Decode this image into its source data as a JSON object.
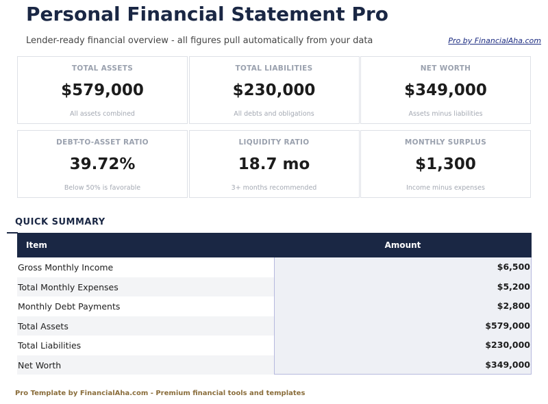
{
  "header": {
    "title": "Personal Financial Statement Pro",
    "subtitle": "Lender-ready financial overview - all figures pull automatically from your data",
    "link": "Pro by FinancialAha.com"
  },
  "cards": [
    {
      "label": "TOTAL ASSETS",
      "value": "$579,000",
      "note": "All assets combined"
    },
    {
      "label": "TOTAL LIABILITIES",
      "value": "$230,000",
      "note": "All debts and obligations"
    },
    {
      "label": "NET WORTH",
      "value": "$349,000",
      "note": "Assets minus liabilities"
    },
    {
      "label": "DEBT-TO-ASSET RATIO",
      "value": "39.72%",
      "note": "Below 50% is favorable"
    },
    {
      "label": "LIQUIDITY RATIO",
      "value": "18.7 mo",
      "note": "3+ months recommended"
    },
    {
      "label": "MONTHLY SURPLUS",
      "value": "$1,300",
      "note": "Income minus expenses"
    }
  ],
  "summary": {
    "title": "QUICK SUMMARY",
    "columns": [
      "Item",
      "Amount"
    ],
    "rows": [
      [
        "Gross Monthly Income",
        "$6,500"
      ],
      [
        "Total Monthly Expenses",
        "$5,200"
      ],
      [
        "Monthly Debt Payments",
        "$2,800"
      ],
      [
        "Total Assets",
        "$579,000"
      ],
      [
        "Total Liabilities",
        "$230,000"
      ],
      [
        "Net Worth",
        "$349,000"
      ]
    ]
  },
  "footer": "Pro Template by FinancialAha.com - Premium financial tools and templates"
}
